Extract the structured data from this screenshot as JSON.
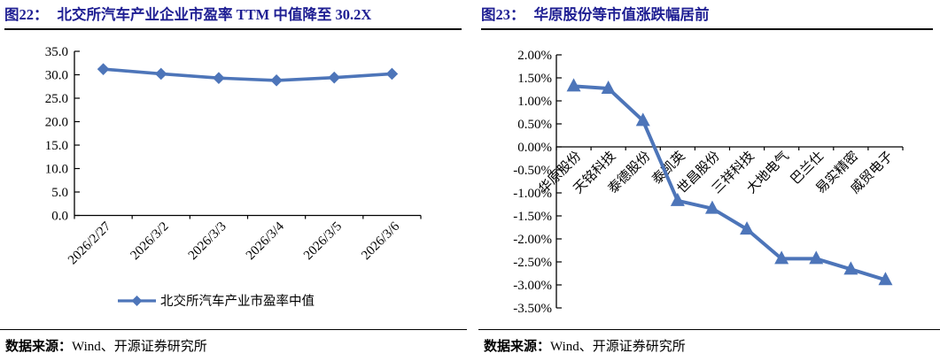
{
  "colors": {
    "series_blue": "#4d75b9",
    "title_navy": "#1f1f93",
    "axis_black": "#000000"
  },
  "left_panel": {
    "fig_label": "图22：",
    "title": "北交所汽车产业企业市盈率 TTM 中值降至 30.2X",
    "source_label": "数据来源：",
    "source": "Wind、开源证券研究所"
  },
  "right_panel": {
    "fig_label": "图23：",
    "title": "华原股份等市值涨跌幅居前",
    "source_label": "数据来源：",
    "source": "Wind、开源证券研究所"
  },
  "chart_data": [
    {
      "type": "line",
      "title": "北交所汽车产业企业市盈率TTM中值降至30.2X",
      "categories": [
        "2026/2/27",
        "2026/3/2",
        "2026/3/3",
        "2026/3/4",
        "2026/3/5",
        "2026/3/6"
      ],
      "series": [
        {
          "name": "北交所汽车产业市盈率中值",
          "values": [
            31.2,
            30.2,
            29.3,
            28.8,
            29.4,
            30.2
          ]
        }
      ],
      "xlabel": "",
      "ylabel": "",
      "ylim": [
        0,
        35
      ],
      "ytick_step": 5,
      "ytick_format": "fixed1",
      "marker": "diamond",
      "grid": false,
      "legend_position": "bottom"
    },
    {
      "type": "line",
      "title": "华原股份等市值涨跌幅居前",
      "categories": [
        "华原股份",
        "天铭科技",
        "泰德股份",
        "泰凯英",
        "世昌股份",
        "三祥科技",
        "大地电气",
        "巴兰仕",
        "易实精密",
        "威贸电子"
      ],
      "series": [
        {
          "name": "市值涨跌幅",
          "values": [
            1.32,
            1.27,
            0.57,
            -1.17,
            -1.34,
            -1.79,
            -2.43,
            -2.43,
            -2.66,
            -2.89
          ]
        }
      ],
      "xlabel": "",
      "ylabel": "",
      "ylim": [
        -3.5,
        2.0
      ],
      "ytick_step": 0.5,
      "ytick_format": "percent2",
      "marker": "triangle",
      "grid": false,
      "legend_position": "none"
    }
  ]
}
